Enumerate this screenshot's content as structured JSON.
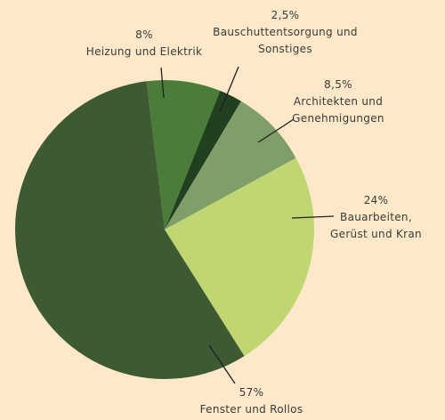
{
  "chart_data": {
    "type": "pie",
    "categories": [
      "Heizung und Elektrik",
      "Bauschuttentsorgung und Sonstiges",
      "Architekten und Genehmigungen",
      "Bauarbeiten, Gerüst und Kran",
      "Fenster und Rollos"
    ],
    "values": [
      8,
      2.5,
      8.5,
      24,
      57
    ],
    "value_labels": [
      "8%",
      "2,5%",
      "8,5%",
      "24%",
      "57%"
    ],
    "colors": [
      "#4a7c3a",
      "#223f1f",
      "#7f9e6a",
      "#bfd672",
      "#3d5a32"
    ]
  }
}
